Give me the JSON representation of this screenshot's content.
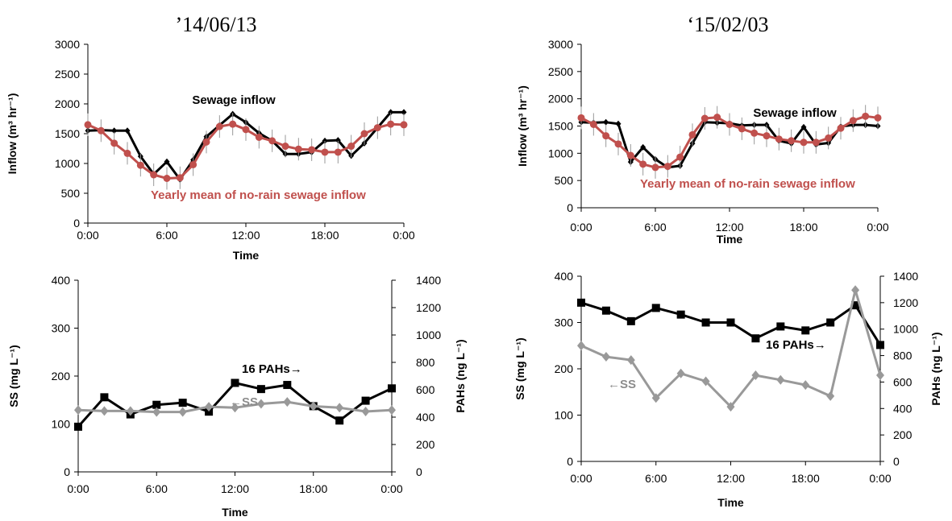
{
  "titles": [
    "’14/06/13",
    "‘15/02/03"
  ],
  "chart_data": [
    {
      "type": "line",
      "panel": "top-left",
      "xlabel": "Time",
      "ylabel": "Inflow (m³ hr⁻¹)",
      "xticks": [
        "0:00",
        "6:00",
        "12:00",
        "18:00",
        "0:00"
      ],
      "xlim": [
        0,
        24
      ],
      "ylim": [
        0,
        3000
      ],
      "yticks": [
        "0",
        "500",
        "1000",
        "1500",
        "2000",
        "2500",
        "3000"
      ],
      "series": [
        {
          "name": "Sewage inflow",
          "color": "#000000",
          "x": [
            0,
            1,
            2,
            3,
            4,
            5,
            6,
            7,
            8,
            9,
            10,
            11,
            12,
            13,
            14,
            15,
            16,
            17,
            18,
            19,
            20,
            21,
            22,
            23,
            24
          ],
          "y": [
            1550,
            1560,
            1550,
            1550,
            1120,
            820,
            1030,
            730,
            1060,
            1450,
            1640,
            1830,
            1690,
            1510,
            1380,
            1160,
            1160,
            1190,
            1380,
            1390,
            1130,
            1340,
            1600,
            1860,
            1860
          ]
        },
        {
          "name": "Yearly mean of no-rain sewage inflow",
          "color": "#c0504d",
          "x": [
            0,
            1,
            2,
            3,
            4,
            5,
            6,
            7,
            8,
            9,
            10,
            11,
            12,
            13,
            14,
            15,
            16,
            17,
            18,
            19,
            20,
            21,
            22,
            23,
            24
          ],
          "y": [
            1650,
            1550,
            1340,
            1170,
            970,
            810,
            750,
            760,
            980,
            1360,
            1620,
            1660,
            1570,
            1440,
            1380,
            1290,
            1240,
            1230,
            1190,
            1190,
            1290,
            1500,
            1600,
            1660,
            1650
          ]
        }
      ]
    },
    {
      "type": "line",
      "panel": "top-right",
      "xlabel": "Time",
      "ylabel": "Inflow (m³ hr⁻¹)",
      "xticks": [
        "0:00",
        "6:00",
        "12:00",
        "18:00",
        "0:00"
      ],
      "xlim": [
        0,
        24
      ],
      "ylim": [
        0,
        3000
      ],
      "yticks": [
        "0",
        "500",
        "1000",
        "1500",
        "2000",
        "2500",
        "3000"
      ],
      "series": [
        {
          "name": "Sewage inflow",
          "color": "#000000",
          "x": [
            0,
            1,
            2,
            3,
            4,
            5,
            6,
            7,
            8,
            9,
            10,
            11,
            12,
            13,
            14,
            15,
            16,
            17,
            18,
            19,
            20,
            21,
            22,
            23,
            24
          ],
          "y": [
            1570,
            1560,
            1570,
            1540,
            840,
            1110,
            890,
            740,
            770,
            1180,
            1570,
            1560,
            1550,
            1510,
            1520,
            1520,
            1230,
            1180,
            1480,
            1160,
            1190,
            1490,
            1520,
            1520,
            1500
          ]
        },
        {
          "name": "Yearly mean of no-rain sewage inflow",
          "color": "#c0504d",
          "x": [
            0,
            1,
            2,
            3,
            4,
            5,
            6,
            7,
            8,
            9,
            10,
            11,
            12,
            13,
            14,
            15,
            16,
            17,
            18,
            19,
            20,
            21,
            22,
            23,
            24
          ],
          "y": [
            1650,
            1530,
            1320,
            1170,
            960,
            800,
            740,
            760,
            930,
            1340,
            1640,
            1660,
            1530,
            1450,
            1370,
            1320,
            1260,
            1230,
            1200,
            1200,
            1280,
            1460,
            1600,
            1680,
            1650
          ]
        }
      ]
    },
    {
      "type": "line",
      "panel": "bottom-left",
      "xlabel": "Time",
      "ylabel": "SS (mg L⁻¹)",
      "ylabel2": "PAHs (ng L⁻¹)",
      "xticks": [
        "0:00",
        "6:00",
        "12:00",
        "18:00",
        "0:00"
      ],
      "xlim": [
        0,
        24
      ],
      "ylim": [
        0,
        400
      ],
      "yticks": [
        "0",
        "100",
        "200",
        "300",
        "400"
      ],
      "ylim2": [
        0,
        1400
      ],
      "yticks2": [
        "0",
        "200",
        "400",
        "600",
        "800",
        "1000",
        "1200",
        "1400"
      ],
      "series": [
        {
          "name": "16 PAHs",
          "axis": "right",
          "color": "#000000",
          "marker": "square",
          "x": [
            0,
            2,
            4,
            6,
            8,
            10,
            12,
            14,
            16,
            18,
            20,
            22,
            24
          ],
          "y": [
            330,
            545,
            420,
            490,
            505,
            440,
            650,
            605,
            635,
            480,
            375,
            520,
            610
          ]
        },
        {
          "name": "SS",
          "axis": "left",
          "color": "#999999",
          "marker": "diamond",
          "x": [
            0,
            2,
            4,
            6,
            8,
            10,
            12,
            14,
            16,
            18,
            20,
            22,
            24
          ],
          "y": [
            129,
            127,
            127,
            125,
            125,
            136,
            134,
            142,
            146,
            137,
            134,
            126,
            129
          ]
        }
      ],
      "annotations": [
        "16 PAHs→",
        "←SS"
      ]
    },
    {
      "type": "line",
      "panel": "bottom-right",
      "xlabel": "Time",
      "ylabel": "SS (mg L⁻¹)",
      "ylabel2": "PAHs (ng L⁻¹)",
      "xticks": [
        "0:00",
        "6:00",
        "12:00",
        "18:00",
        "0:00"
      ],
      "xlim": [
        0,
        24
      ],
      "ylim": [
        0,
        400
      ],
      "yticks": [
        "0",
        "100",
        "200",
        "300",
        "400"
      ],
      "ylim2": [
        0,
        1400
      ],
      "yticks2": [
        "0",
        "200",
        "400",
        "600",
        "800",
        "1000",
        "1200",
        "1400"
      ],
      "series": [
        {
          "name": "16 PAHs",
          "axis": "right",
          "color": "#000000",
          "marker": "square",
          "x": [
            0,
            2,
            4,
            6,
            8,
            10,
            12,
            14,
            16,
            18,
            20,
            22,
            24
          ],
          "y": [
            1200,
            1140,
            1060,
            1160,
            1110,
            1050,
            1050,
            930,
            1020,
            990,
            1050,
            1180,
            880
          ]
        },
        {
          "name": "SS",
          "axis": "left",
          "color": "#999999",
          "marker": "diamond",
          "x": [
            0,
            2,
            4,
            6,
            8,
            10,
            12,
            14,
            16,
            18,
            20,
            22,
            24
          ],
          "y": [
            250,
            226,
            219,
            137,
            190,
            173,
            118,
            186,
            176,
            165,
            141,
            370,
            186
          ]
        }
      ],
      "annotations": [
        "16 PAHs→",
        "←SS"
      ]
    }
  ]
}
